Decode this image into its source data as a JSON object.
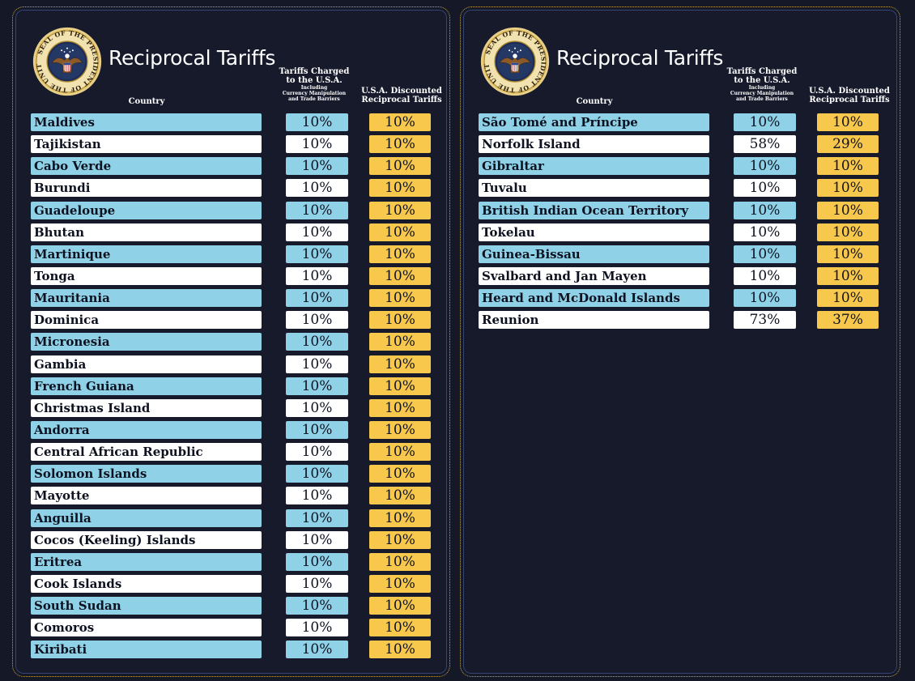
{
  "colors": {
    "background": "#141827",
    "blue_row": "#8fd2e8",
    "white_row": "#ffffff",
    "discount": "#f7c84b",
    "gold_border": "#c9a53a"
  },
  "seal": {
    "icon": "presidential-seal-icon",
    "text": "SEAL OF THE PRESIDENT OF THE UNITED STATES"
  },
  "header": {
    "title": "Reciprocal Tariffs",
    "country": "Country",
    "charged_main_1": "Tariffs Charged",
    "charged_main_2": "to the U.S.A.",
    "charged_sub_1": "Including",
    "charged_sub_2": "Currency Manipulation",
    "charged_sub_3": "and Trade Barriers",
    "discount_1": "U.S.A. Discounted",
    "discount_2": "Reciprocal Tariffs"
  },
  "left_table": [
    {
      "country": "Maldives",
      "charged": "10%",
      "discounted": "10%"
    },
    {
      "country": "Tajikistan",
      "charged": "10%",
      "discounted": "10%"
    },
    {
      "country": "Cabo Verde",
      "charged": "10%",
      "discounted": "10%"
    },
    {
      "country": "Burundi",
      "charged": "10%",
      "discounted": "10%"
    },
    {
      "country": "Guadeloupe",
      "charged": "10%",
      "discounted": "10%"
    },
    {
      "country": "Bhutan",
      "charged": "10%",
      "discounted": "10%"
    },
    {
      "country": "Martinique",
      "charged": "10%",
      "discounted": "10%"
    },
    {
      "country": "Tonga",
      "charged": "10%",
      "discounted": "10%"
    },
    {
      "country": "Mauritania",
      "charged": "10%",
      "discounted": "10%"
    },
    {
      "country": "Dominica",
      "charged": "10%",
      "discounted": "10%"
    },
    {
      "country": "Micronesia",
      "charged": "10%",
      "discounted": "10%"
    },
    {
      "country": "Gambia",
      "charged": "10%",
      "discounted": "10%"
    },
    {
      "country": "French Guiana",
      "charged": "10%",
      "discounted": "10%"
    },
    {
      "country": "Christmas Island",
      "charged": "10%",
      "discounted": "10%"
    },
    {
      "country": "Andorra",
      "charged": "10%",
      "discounted": "10%"
    },
    {
      "country": "Central African Republic",
      "charged": "10%",
      "discounted": "10%"
    },
    {
      "country": "Solomon Islands",
      "charged": "10%",
      "discounted": "10%"
    },
    {
      "country": "Mayotte",
      "charged": "10%",
      "discounted": "10%"
    },
    {
      "country": "Anguilla",
      "charged": "10%",
      "discounted": "10%"
    },
    {
      "country": "Cocos (Keeling) Islands",
      "charged": "10%",
      "discounted": "10%"
    },
    {
      "country": "Eritrea",
      "charged": "10%",
      "discounted": "10%"
    },
    {
      "country": "Cook Islands",
      "charged": "10%",
      "discounted": "10%"
    },
    {
      "country": "South Sudan",
      "charged": "10%",
      "discounted": "10%"
    },
    {
      "country": "Comoros",
      "charged": "10%",
      "discounted": "10%"
    },
    {
      "country": "Kiribati",
      "charged": "10%",
      "discounted": "10%"
    }
  ],
  "right_table": [
    {
      "country": "São Tomé and Príncipe",
      "charged": "10%",
      "discounted": "10%"
    },
    {
      "country": "Norfolk Island",
      "charged": "58%",
      "discounted": "29%"
    },
    {
      "country": "Gibraltar",
      "charged": "10%",
      "discounted": "10%"
    },
    {
      "country": "Tuvalu",
      "charged": "10%",
      "discounted": "10%"
    },
    {
      "country": "British Indian Ocean Territory",
      "charged": "10%",
      "discounted": "10%"
    },
    {
      "country": "Tokelau",
      "charged": "10%",
      "discounted": "10%"
    },
    {
      "country": "Guinea-Bissau",
      "charged": "10%",
      "discounted": "10%"
    },
    {
      "country": "Svalbard and Jan Mayen",
      "charged": "10%",
      "discounted": "10%"
    },
    {
      "country": "Heard and McDonald Islands",
      "charged": "10%",
      "discounted": "10%"
    },
    {
      "country": "Reunion",
      "charged": "73%",
      "discounted": "37%"
    }
  ]
}
